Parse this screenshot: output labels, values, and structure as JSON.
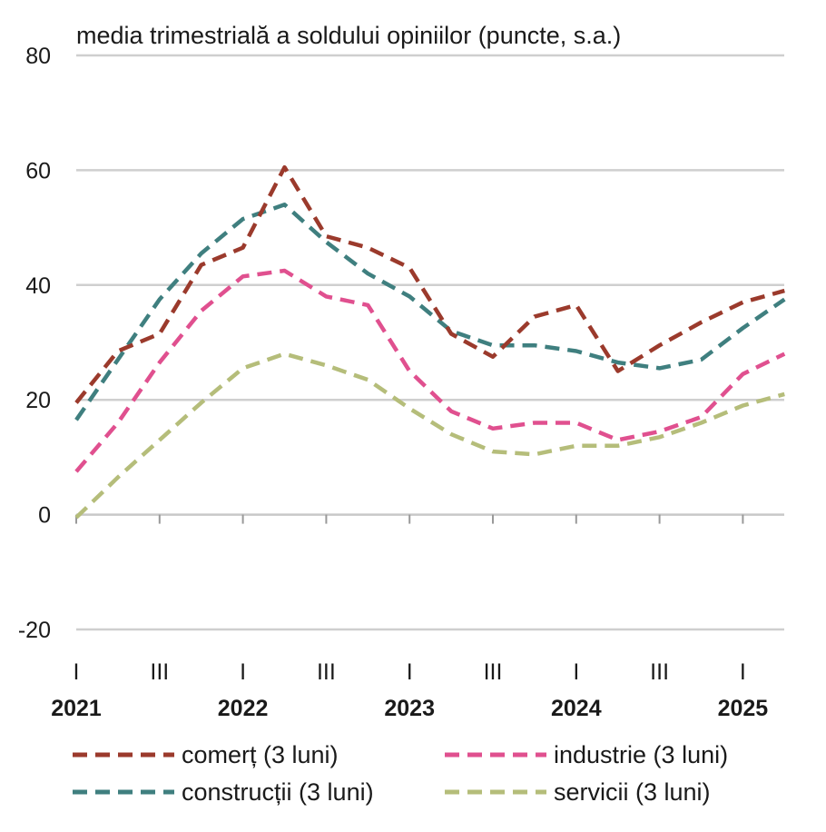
{
  "chart_data": {
    "type": "line",
    "title": "media trimestrială a soldului opiniilor (puncte, s.a.)",
    "ylim": [
      -20,
      80
    ],
    "yticks": [
      -20,
      0,
      20,
      40,
      60,
      80
    ],
    "quarter_labels": [
      "I",
      "III",
      "I",
      "III",
      "I",
      "III",
      "I",
      "III",
      "I"
    ],
    "year_labels": [
      "2021",
      "2022",
      "2023",
      "2024",
      "2025"
    ],
    "x_quarters": [
      "2021 T1",
      "2021 T2",
      "2021 T3",
      "2021 T4",
      "2022 T1",
      "2022 T2",
      "2022 T3",
      "2022 T4",
      "2023 T1",
      "2023 T2",
      "2023 T3",
      "2023 T4",
      "2024 T1",
      "2024 T2",
      "2024 T3",
      "2024 T4",
      "2025 T1",
      "2025 T2"
    ],
    "grid": true,
    "legend_position": "bottom",
    "series": [
      {
        "name": "comerț (3 luni)",
        "color": "#9b3a2c",
        "values": [
          19.5,
          28.5,
          31.5,
          43.5,
          46.5,
          60.5,
          48.5,
          46.5,
          43.0,
          31.5,
          27.5,
          34.5,
          36.5,
          25.0,
          29.5,
          33.5,
          37.0,
          39.0
        ]
      },
      {
        "name": "industrie (3 luni)",
        "color": "#e0508f",
        "values": [
          7.5,
          16.0,
          26.5,
          35.5,
          41.5,
          42.5,
          38.0,
          36.5,
          25.0,
          18.0,
          15.0,
          16.0,
          16.0,
          13.0,
          14.5,
          17.0,
          24.5,
          28.0
        ]
      },
      {
        "name": "construcții (3 luni)",
        "color": "#3f7f7f",
        "values": [
          16.5,
          27.0,
          37.5,
          45.5,
          51.5,
          54.0,
          47.5,
          42.0,
          38.0,
          32.0,
          29.5,
          29.5,
          28.5,
          26.5,
          25.5,
          27.0,
          32.5,
          37.5
        ]
      },
      {
        "name": "servicii (3 luni)",
        "color": "#b5bd7a",
        "values": [
          -0.5,
          6.5,
          13.0,
          19.5,
          25.5,
          28.0,
          26.0,
          23.5,
          18.5,
          14.0,
          11.0,
          10.5,
          12.0,
          12.0,
          13.5,
          16.0,
          19.0,
          21.0
        ]
      }
    ]
  }
}
